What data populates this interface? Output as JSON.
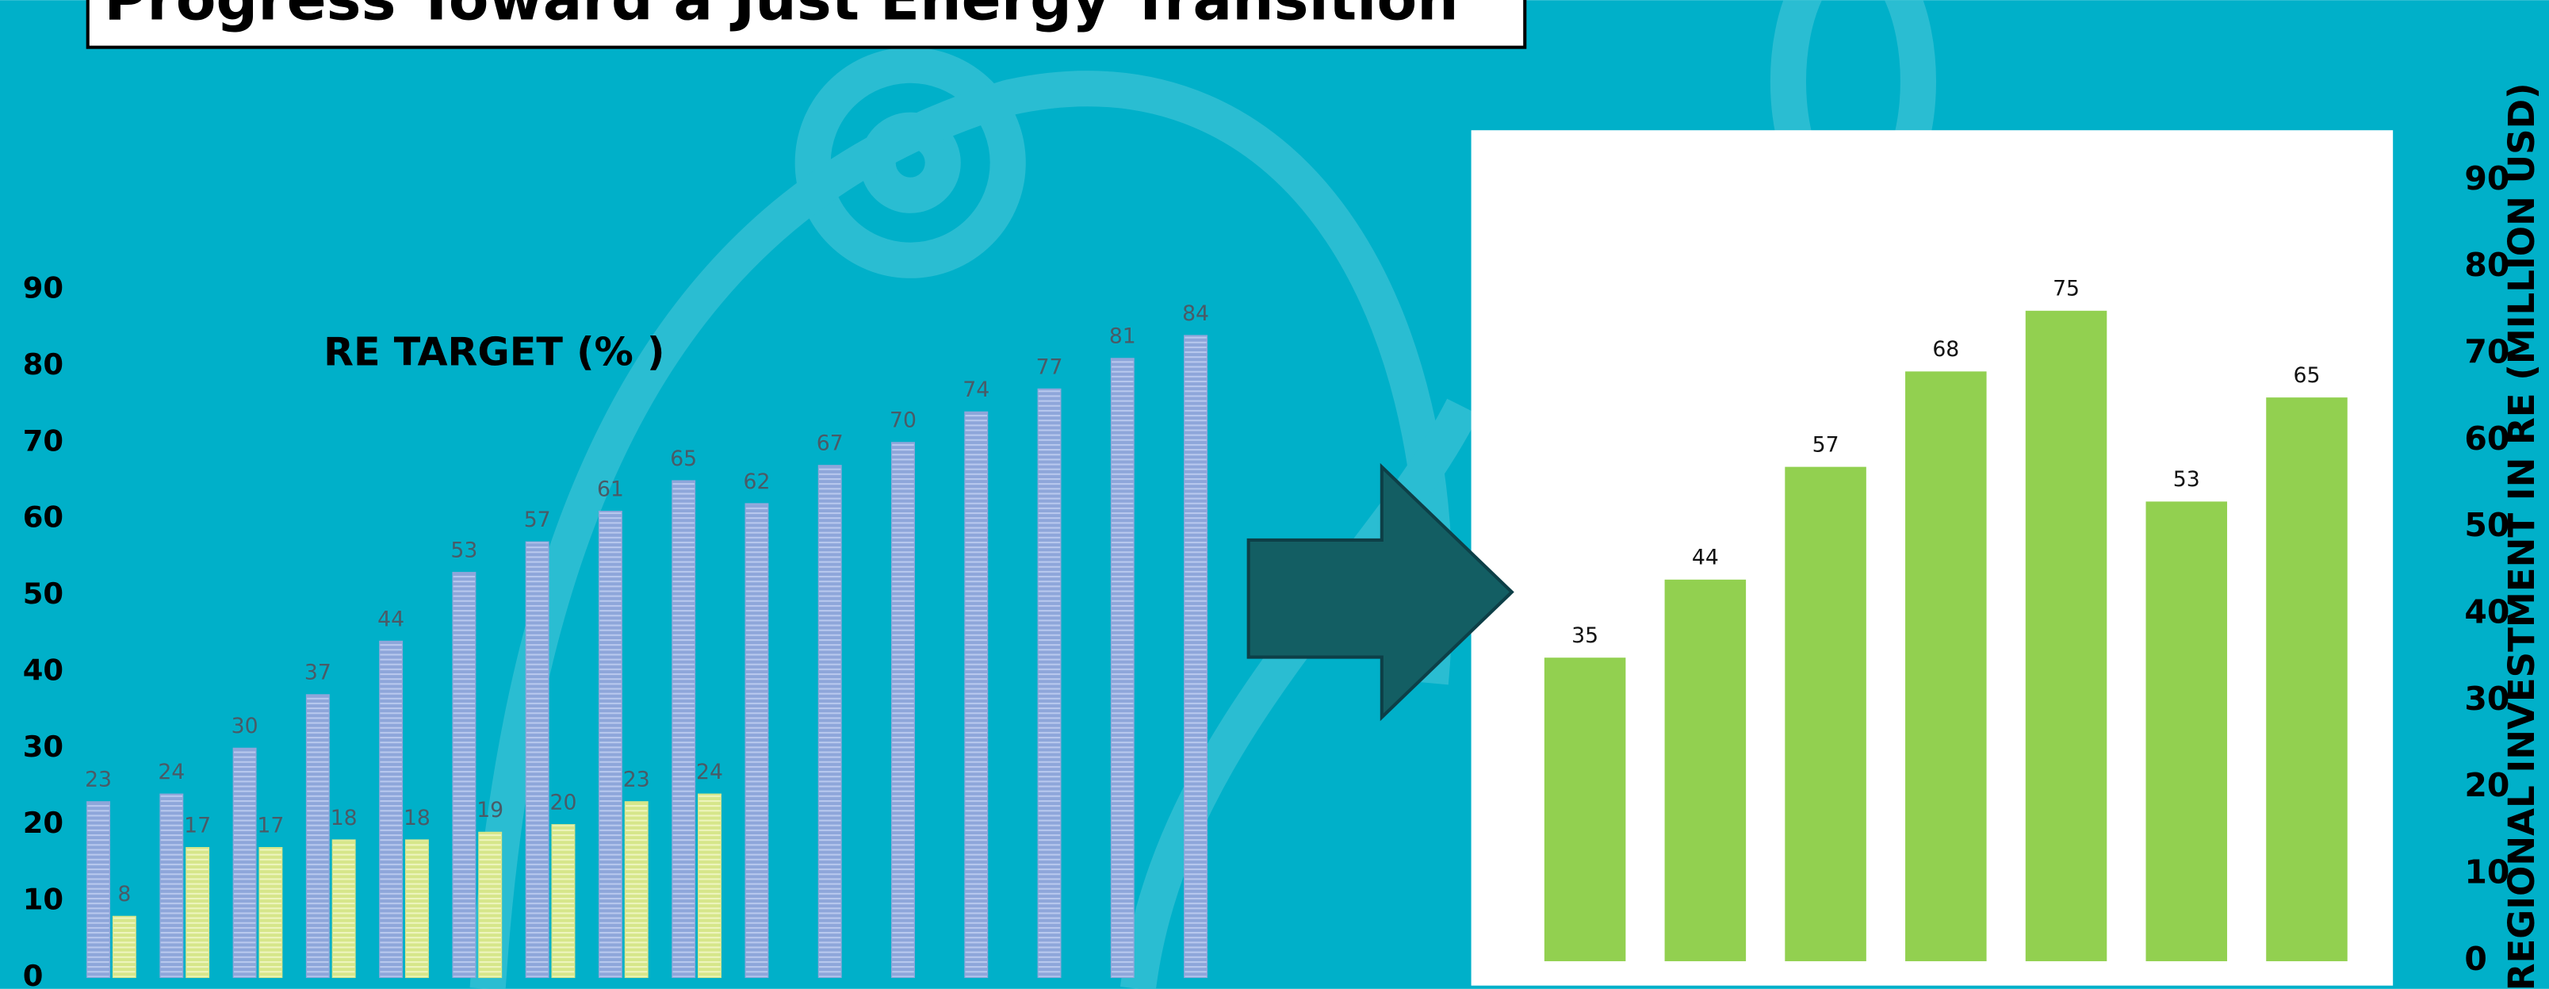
{
  "slide_title": "Progress Toward a Just Energy Transition",
  "chart_data": [
    {
      "type": "bar",
      "title": "RE TARGET (% )",
      "categories": [
        null,
        null,
        null,
        null,
        null,
        null,
        null,
        null,
        null,
        null,
        null,
        null,
        null,
        null,
        null,
        null
      ],
      "series": [
        {
          "color": "#8ea6da",
          "values": [
            23,
            24,
            30,
            37,
            44,
            53,
            57,
            61,
            65,
            62,
            67,
            70,
            74,
            77,
            81,
            84
          ]
        },
        {
          "color": "#d6e68a",
          "values": [
            8,
            17,
            17,
            18,
            18,
            19,
            20,
            23,
            24,
            null,
            null,
            null,
            null,
            null,
            null,
            null
          ]
        }
      ],
      "ylim": [
        0,
        90
      ],
      "yticks": [
        0,
        10,
        20,
        30,
        40,
        50,
        60,
        70,
        80,
        90
      ]
    },
    {
      "type": "bar",
      "y_axis_label": "REGIONAL INVESTMENT IN RE (MILLION USD)",
      "categories": [
        null,
        null,
        null,
        null,
        null,
        null,
        null
      ],
      "values": [
        35,
        44,
        57,
        68,
        75,
        53,
        65
      ],
      "color": "#92d050",
      "ylim": [
        0,
        90
      ],
      "yticks": [
        0,
        10,
        20,
        30,
        40,
        50,
        60,
        70,
        80,
        90
      ]
    }
  ]
}
